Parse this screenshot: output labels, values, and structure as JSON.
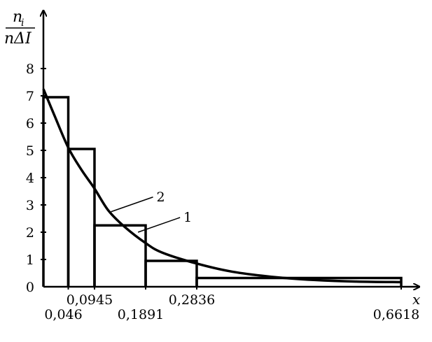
{
  "chart_data": {
    "type": "bar",
    "subtype": "histogram-with-density-curve",
    "title": "",
    "ylabel": {
      "numerator": "n",
      "numerator_sub": "i",
      "denominator": "nΔI"
    },
    "xlabel": "x",
    "ylim": [
      0,
      8.5
    ],
    "xlim": [
      0,
      0.68
    ],
    "y_ticks": [
      {
        "value": 0,
        "label": "0"
      },
      {
        "value": 1,
        "label": "1"
      },
      {
        "value": 2,
        "label": "2"
      },
      {
        "value": 3,
        "label": "3"
      },
      {
        "value": 4,
        "label": "4"
      },
      {
        "value": 5,
        "label": "5"
      },
      {
        "value": 6,
        "label": "6"
      },
      {
        "value": 7,
        "label": "7"
      },
      {
        "value": 8,
        "label": "8"
      }
    ],
    "x_ticks": [
      {
        "value": 0.046,
        "label": "0,046",
        "row": "lower"
      },
      {
        "value": 0.0945,
        "label": "0,0945",
        "row": "upper"
      },
      {
        "value": 0.1891,
        "label": "0,1891",
        "row": "lower"
      },
      {
        "value": 0.2836,
        "label": "0,2836",
        "row": "upper"
      },
      {
        "value": 0.6618,
        "label": "0,6618",
        "row": "lower"
      }
    ],
    "bins": [
      {
        "x0": 0,
        "x1": 0.046,
        "height": 6.95
      },
      {
        "x0": 0.046,
        "x1": 0.0945,
        "height": 5.05
      },
      {
        "x0": 0.0945,
        "x1": 0.1891,
        "height": 2.25
      },
      {
        "x0": 0.1891,
        "x1": 0.2836,
        "height": 0.95
      },
      {
        "x0": 0.2836,
        "x1": 0.6618,
        "height": 0.32
      }
    ],
    "density_curve": [
      [
        0,
        7.25
      ],
      [
        0.02,
        6.3
      ],
      [
        0.046,
        5.1
      ],
      [
        0.07,
        4.3
      ],
      [
        0.0945,
        3.6
      ],
      [
        0.12,
        2.8
      ],
      [
        0.15,
        2.2
      ],
      [
        0.1891,
        1.6
      ],
      [
        0.22,
        1.25
      ],
      [
        0.2836,
        0.85
      ],
      [
        0.35,
        0.55
      ],
      [
        0.43,
        0.35
      ],
      [
        0.5,
        0.25
      ],
      [
        0.58,
        0.19
      ],
      [
        0.6618,
        0.17
      ]
    ],
    "annotations": [
      {
        "label": "1",
        "target": "histogram",
        "anchor": [
          0.175,
          2.0
        ]
      },
      {
        "label": "2",
        "target": "density_curve",
        "anchor": [
          0.125,
          2.75
        ]
      }
    ],
    "grid": false,
    "legend": "none"
  }
}
